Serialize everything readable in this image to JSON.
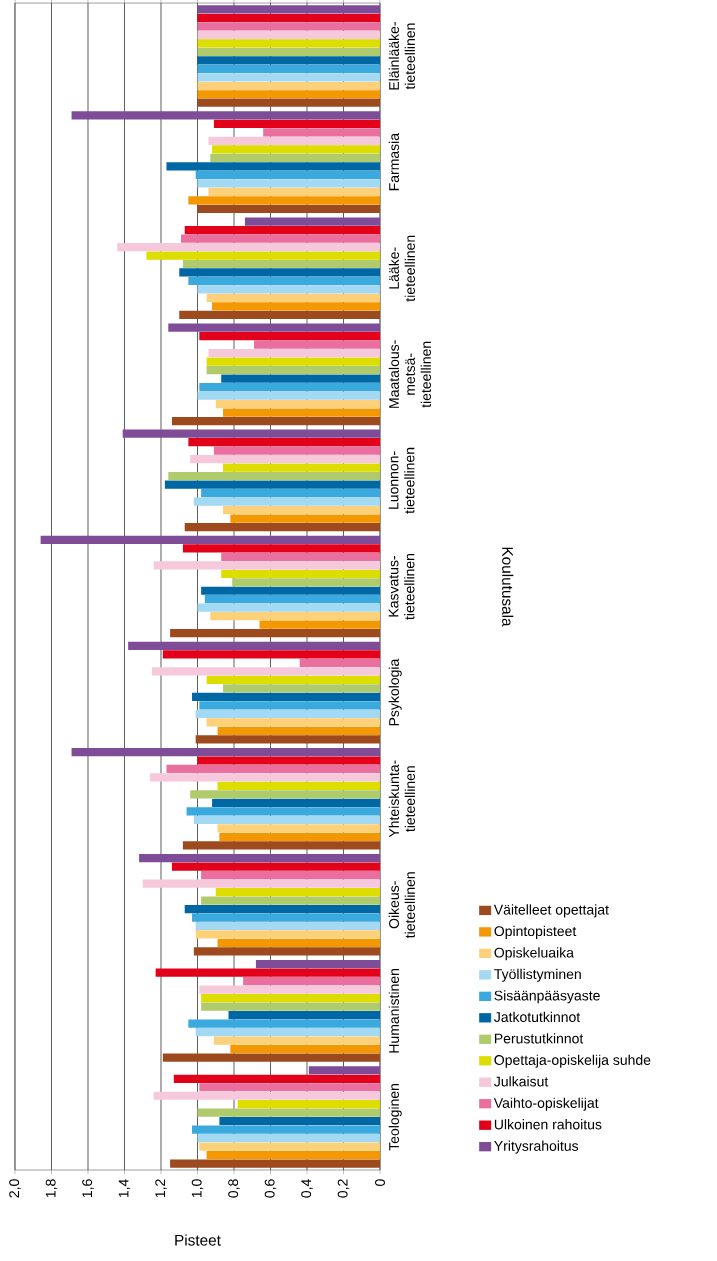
{
  "chart_data": {
    "type": "bar",
    "orientation": "horizontal",
    "categories": [
      "Eläinlääke- tieteellinen",
      "Farmasia",
      "Lääke- tieteellinen",
      "Maatalous- metsä- tieteellinen",
      "Luonnon- tieteellinen",
      "Kasvatus- tieteellinen",
      "Psykologia",
      "Yhteiskunta- tieteellinen",
      "Oikeus- tieteellinen",
      "Humanistinen",
      "Teologinen"
    ],
    "series": [
      {
        "name": "Väitelleet opettajat",
        "color": "#9c4a1e",
        "values": [
          1.0,
          1.0,
          1.1,
          1.14,
          1.07,
          1.15,
          1.01,
          1.08,
          1.02,
          1.19,
          1.15
        ]
      },
      {
        "name": "Opintopisteet",
        "color": "#f39800",
        "values": [
          1.0,
          1.05,
          0.92,
          0.86,
          0.82,
          0.66,
          0.89,
          0.88,
          0.89,
          0.82,
          0.95
        ]
      },
      {
        "name": "Opiskeluaika",
        "color": "#fdd17a",
        "values": [
          1.0,
          0.94,
          0.95,
          0.9,
          0.86,
          0.93,
          0.95,
          0.89,
          1.01,
          0.91,
          0.99
        ]
      },
      {
        "name": "Työllistyminen",
        "color": "#a3d9f2",
        "values": [
          1.0,
          1.0,
          1.0,
          1.0,
          1.02,
          1.0,
          1.01,
          1.02,
          1.01,
          1.01,
          1.0
        ]
      },
      {
        "name": "Sisäänpääsyaste",
        "color": "#3aaade",
        "values": [
          1.0,
          1.01,
          1.05,
          0.99,
          0.98,
          0.96,
          0.99,
          1.06,
          1.03,
          1.05,
          1.03
        ]
      },
      {
        "name": "Jatkotutkinnot",
        "color": "#0067a5",
        "values": [
          1.0,
          1.17,
          1.1,
          0.87,
          1.18,
          0.98,
          1.03,
          0.92,
          1.07,
          0.83,
          0.88
        ]
      },
      {
        "name": "Perustutkinnot",
        "color": "#afcb6c",
        "values": [
          1.0,
          0.93,
          1.08,
          0.95,
          1.16,
          0.81,
          0.86,
          1.04,
          0.98,
          0.98,
          1.0
        ]
      },
      {
        "name": "Opettaja-opiskelija suhde",
        "color": "#dedd00",
        "values": [
          1.0,
          0.92,
          1.28,
          0.95,
          0.86,
          0.87,
          0.95,
          0.89,
          0.9,
          0.98,
          0.78
        ]
      },
      {
        "name": "Julkaisut",
        "color": "#f6c8dc",
        "values": [
          1.0,
          0.94,
          1.44,
          0.94,
          1.04,
          1.24,
          1.25,
          1.26,
          1.3,
          0.99,
          1.24
        ]
      },
      {
        "name": "Vaihto-opiskelijat",
        "color": "#ea6f9e",
        "values": [
          1.0,
          0.64,
          1.09,
          0.69,
          0.91,
          0.87,
          0.44,
          1.17,
          0.98,
          0.75,
          0.99
        ]
      },
      {
        "name": "Ulkoinen rahoitus",
        "color": "#e3001b",
        "values": [
          1.0,
          0.91,
          1.07,
          0.99,
          1.05,
          1.08,
          1.19,
          1.0,
          1.14,
          1.23,
          1.13
        ]
      },
      {
        "name": "Yritysrahoitus",
        "color": "#7f4c97",
        "values": [
          1.0,
          1.69,
          0.74,
          1.16,
          1.41,
          1.86,
          1.38,
          1.69,
          1.32,
          0.68,
          0.39
        ]
      }
    ],
    "xlim": [
      2.0,
      0
    ],
    "xticks": [
      {
        "value": 2.0,
        "label": "2,0"
      },
      {
        "value": 1.8,
        "label": "1,8"
      },
      {
        "value": 1.6,
        "label": "1,6"
      },
      {
        "value": 1.4,
        "label": "1,4"
      },
      {
        "value": 1.2,
        "label": "1,2"
      },
      {
        "value": 1.0,
        "label": "1,0"
      },
      {
        "value": 0.8,
        "label": "0,8"
      },
      {
        "value": 0.6,
        "label": "0,6"
      },
      {
        "value": 0.4,
        "label": "0,4"
      },
      {
        "value": 0.2,
        "label": "0,2"
      },
      0
    ],
    "xlabel": "Pisteet",
    "ylabel": "Koulutusala",
    "grid": "x",
    "legend": "right"
  }
}
